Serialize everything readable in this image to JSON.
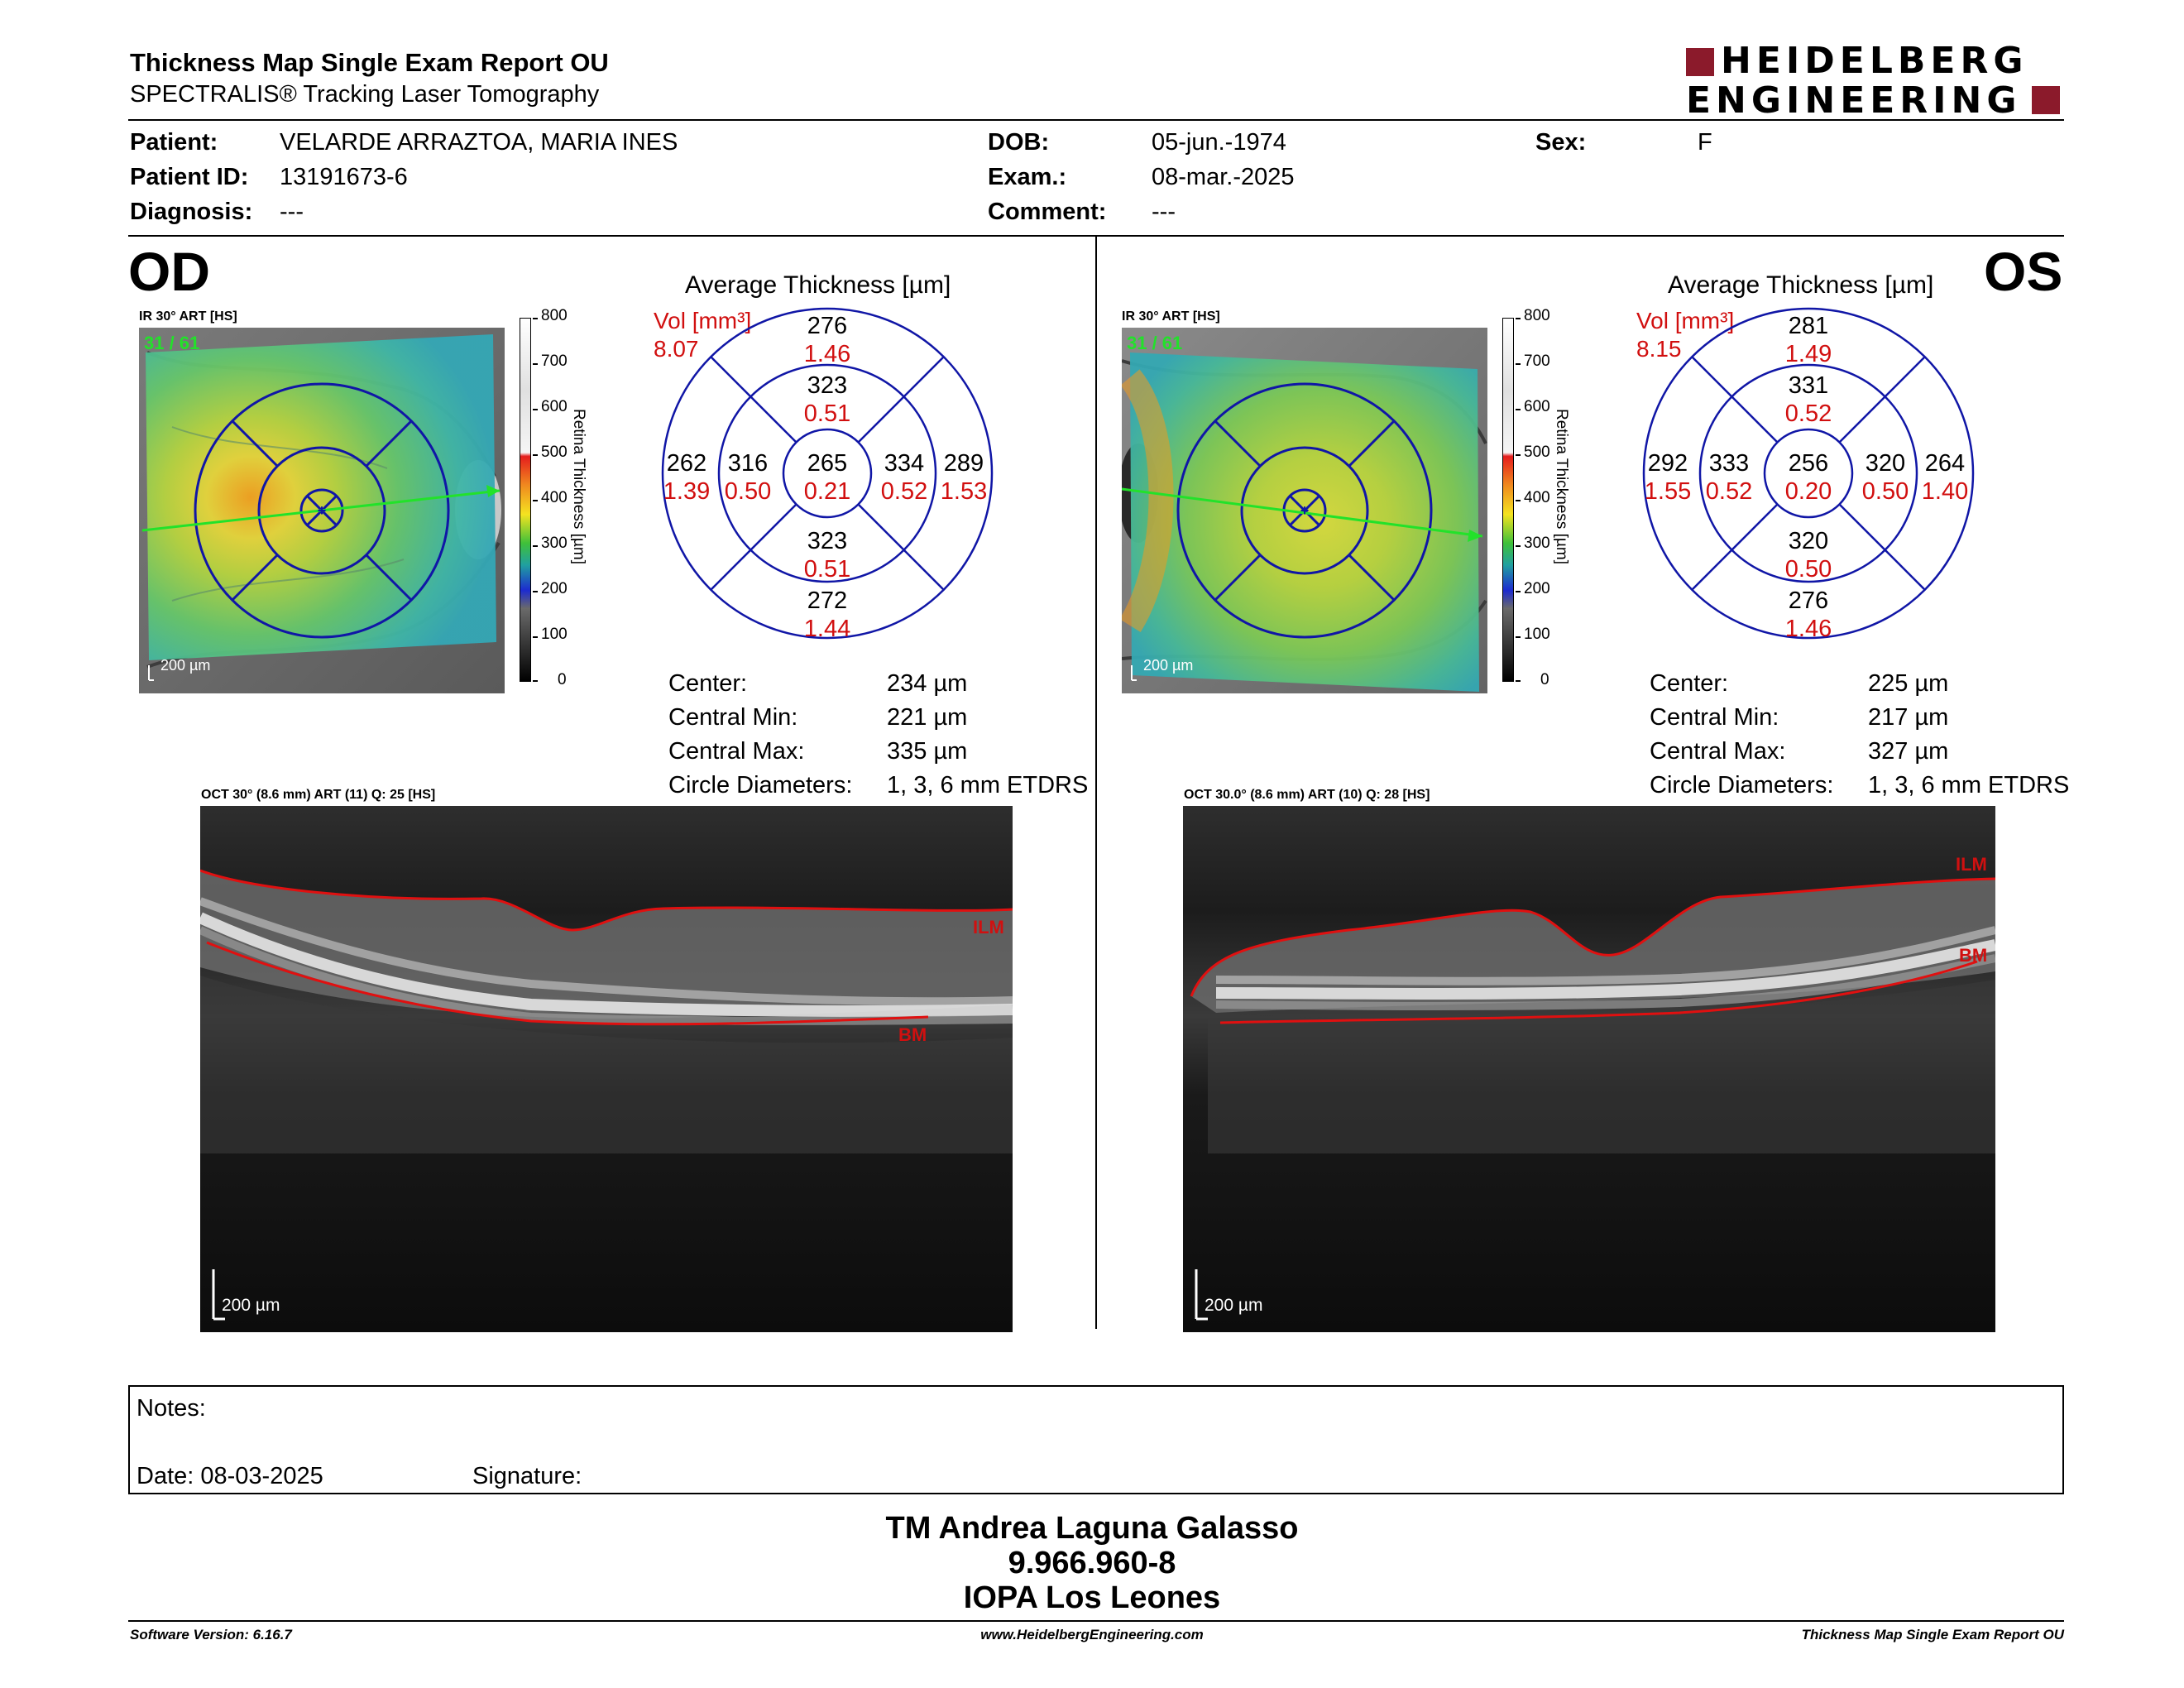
{
  "header": {
    "title": "Thickness Map Single Exam Report OU",
    "subtitle": "SPECTRALIS® Tracking Laser Tomography",
    "logo_line1": "HEIDELBERG",
    "logo_line2": "ENGINEERING",
    "logo_color": "#8b1a2b"
  },
  "patient": {
    "patient_label": "Patient:",
    "patient_value": "VELARDE ARRAZTOA, MARIA INES",
    "id_label": "Patient ID:",
    "id_value": "13191673-6",
    "diagnosis_label": "Diagnosis:",
    "diagnosis_value": "---",
    "dob_label": "DOB:",
    "dob_value": "05-jun.-1974",
    "exam_label": "Exam.:",
    "exam_value": "08-mar.-2025",
    "comment_label": "Comment:",
    "comment_value": "---",
    "sex_label": "Sex:",
    "sex_value": "F"
  },
  "od": {
    "eye_label": "OD",
    "ir_label": "IR 30° ART [HS]",
    "frame_label": "31 / 61",
    "scale_label": "200 µm",
    "colorbar_ticks": [
      "800",
      "700",
      "600",
      "500",
      "400",
      "300",
      "200",
      "100",
      "0"
    ],
    "colorbar_title": "Retina Thickness [µm]",
    "avg_title": "Average Thickness [µm]",
    "vol_label": "Vol [mm³]",
    "vol_value": "8.07",
    "sectors": {
      "outer_top": [
        "276",
        "1.46"
      ],
      "inner_top": [
        "323",
        "0.51"
      ],
      "outer_left": [
        "262",
        "1.39"
      ],
      "inner_left": [
        "316",
        "0.50"
      ],
      "center": [
        "265",
        "0.21"
      ],
      "inner_right": [
        "334",
        "0.52"
      ],
      "outer_right": [
        "289",
        "1.53"
      ],
      "inner_bottom": [
        "323",
        "0.51"
      ],
      "outer_bottom": [
        "272",
        "1.44"
      ]
    },
    "stats": [
      {
        "label": "Center:",
        "value": "234 µm"
      },
      {
        "label": "Central Min:",
        "value": "221 µm"
      },
      {
        "label": "Central Max:",
        "value": "335 µm"
      },
      {
        "label": "Circle Diameters:",
        "value": "1, 3, 6 mm ETDRS"
      }
    ],
    "oct_label": "OCT 30° (8.6 mm) ART (11) Q: 25 [HS]",
    "oct_scale": "200 µm",
    "ilm": "ILM",
    "bm": "BM"
  },
  "os": {
    "eye_label": "OS",
    "ir_label": "IR 30° ART [HS]",
    "frame_label": "31 / 61",
    "scale_label": "200 µm",
    "colorbar_ticks": [
      "800",
      "700",
      "600",
      "500",
      "400",
      "300",
      "200",
      "100",
      "0"
    ],
    "colorbar_title": "Retina Thickness [µm]",
    "avg_title": "Average Thickness [µm]",
    "vol_label": "Vol [mm³]",
    "vol_value": "8.15",
    "sectors": {
      "outer_top": [
        "281",
        "1.49"
      ],
      "inner_top": [
        "331",
        "0.52"
      ],
      "outer_left": [
        "292",
        "1.55"
      ],
      "inner_left": [
        "333",
        "0.52"
      ],
      "center": [
        "256",
        "0.20"
      ],
      "inner_right": [
        "320",
        "0.50"
      ],
      "outer_right": [
        "264",
        "1.40"
      ],
      "inner_bottom": [
        "320",
        "0.50"
      ],
      "outer_bottom": [
        "276",
        "1.46"
      ]
    },
    "stats": [
      {
        "label": "Center:",
        "value": "225 µm"
      },
      {
        "label": "Central Min:",
        "value": "217 µm"
      },
      {
        "label": "Central Max:",
        "value": "327 µm"
      },
      {
        "label": "Circle Diameters:",
        "value": "1, 3, 6 mm ETDRS"
      }
    ],
    "oct_label": "OCT 30.0° (8.6 mm) ART (10) Q: 28 [HS]",
    "oct_scale": "200 µm",
    "ilm": "ILM",
    "bm": "BM"
  },
  "notes": {
    "notes_label": "Notes:",
    "date_label": "Date: 08-03-2025",
    "signature_label": "Signature:"
  },
  "signature": {
    "line1": "TM Andrea Laguna Galasso",
    "line2": "9.966.960-8",
    "line3": "IOPA Los Leones"
  },
  "footer": {
    "software": "Software Version: 6.16.7",
    "website": "www.HeidelbergEngineering.com",
    "report": "Thickness Map Single Exam Report OU"
  }
}
